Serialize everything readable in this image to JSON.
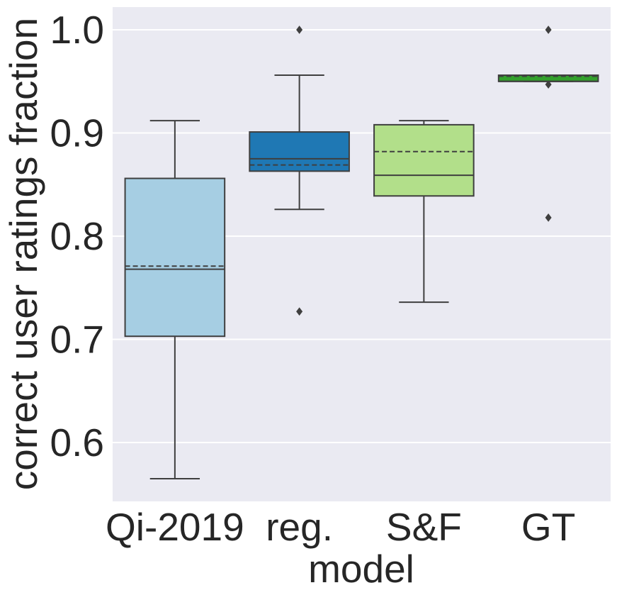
{
  "chart_data": {
    "type": "box",
    "xlabel": "model",
    "ylabel": "correct user ratings fraction",
    "ylim": [
      0.543,
      1.022
    ],
    "yticks": [
      0.6,
      0.7,
      0.8,
      0.9,
      1.0
    ],
    "ytick_labels": [
      "0.6",
      "0.7",
      "0.8",
      "0.9",
      "1.0"
    ],
    "grid": true,
    "categories": [
      "Qi-2019",
      "reg.",
      "S&F",
      "GT"
    ],
    "boxes": [
      {
        "name": "Qi-2019",
        "whisker_low": 0.565,
        "q1": 0.703,
        "median": 0.768,
        "mean": 0.771,
        "q3": 0.856,
        "whisker_high": 0.912,
        "outliers": [],
        "color": "#a6cee3"
      },
      {
        "name": "reg.",
        "whisker_low": 0.826,
        "q1": 0.863,
        "median": 0.875,
        "mean": 0.869,
        "q3": 0.901,
        "whisker_high": 0.956,
        "outliers": [
          0.727,
          1.0
        ],
        "color": "#1f78b4"
      },
      {
        "name": "S&F",
        "whisker_low": 0.736,
        "q1": 0.839,
        "median": 0.859,
        "mean": 0.882,
        "q3": 0.908,
        "whisker_high": 0.912,
        "outliers": [],
        "color": "#b2df8a"
      },
      {
        "name": "GT",
        "whisker_low": 0.95,
        "q1": 0.95,
        "median": 0.95,
        "mean": 0.955,
        "q3": 0.956,
        "whisker_high": 0.956,
        "outliers": [
          0.818,
          0.947,
          1.0
        ],
        "color": "#33a02c"
      }
    ],
    "colors": {
      "background": "#eaeaf2",
      "grid": "#ffffff",
      "line": "#3f3f3f",
      "text": "#262626"
    }
  }
}
